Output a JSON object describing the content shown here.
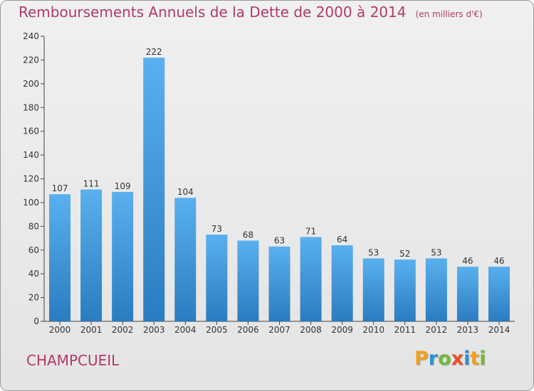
{
  "header": {
    "title": "Remboursements Annuels de la Dette de 2000 à 2014",
    "subtitle": "(en milliers d'€)"
  },
  "footer": {
    "place": "CHAMPCUEIL",
    "brand": "Proxiti"
  },
  "colors": {
    "title": "#b03a6a",
    "bar_top": "#5ab0ee",
    "bar_bottom": "#2a7cc0",
    "axis": "#444444"
  },
  "chart_data": {
    "type": "bar",
    "title": "Remboursements Annuels de la Dette de 2000 à 2014",
    "subtitle": "(en milliers d'€)",
    "categories": [
      "2000",
      "2001",
      "2002",
      "2003",
      "2004",
      "2005",
      "2006",
      "2007",
      "2008",
      "2009",
      "2010",
      "2011",
      "2012",
      "2013",
      "2014"
    ],
    "values": [
      107,
      111,
      109,
      222,
      104,
      73,
      68,
      63,
      71,
      64,
      53,
      52,
      53,
      46,
      46
    ],
    "xlabel": "",
    "ylabel": "",
    "ylim": [
      0,
      240
    ],
    "yticks": [
      0,
      20,
      40,
      60,
      80,
      100,
      120,
      140,
      160,
      180,
      200,
      220,
      240
    ],
    "grid": false,
    "data_labels": true
  }
}
